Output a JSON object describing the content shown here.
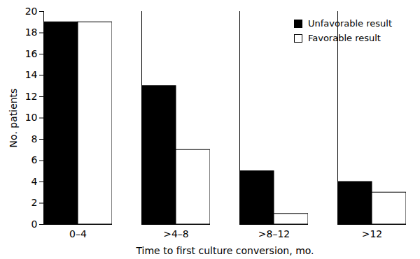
{
  "chart_data": {
    "type": "bar",
    "x_label": "Time to first culture conversion, mo.",
    "y_label": "No. patients",
    "categories": [
      "0–4",
      ">4–8",
      ">8–12",
      ">12"
    ],
    "series": [
      {
        "name": "Unfavorable result",
        "color": "#000000",
        "values": [
          19,
          13,
          5,
          4
        ]
      },
      {
        "name": "Favorable result",
        "color": "#ffffff",
        "values": [
          19,
          7,
          1,
          3
        ]
      }
    ],
    "ylim": [
      0,
      20
    ],
    "yticks": [
      0,
      2,
      4,
      6,
      8,
      10,
      12,
      14,
      16,
      18,
      20
    ],
    "grid": false,
    "legend": "top-right"
  }
}
